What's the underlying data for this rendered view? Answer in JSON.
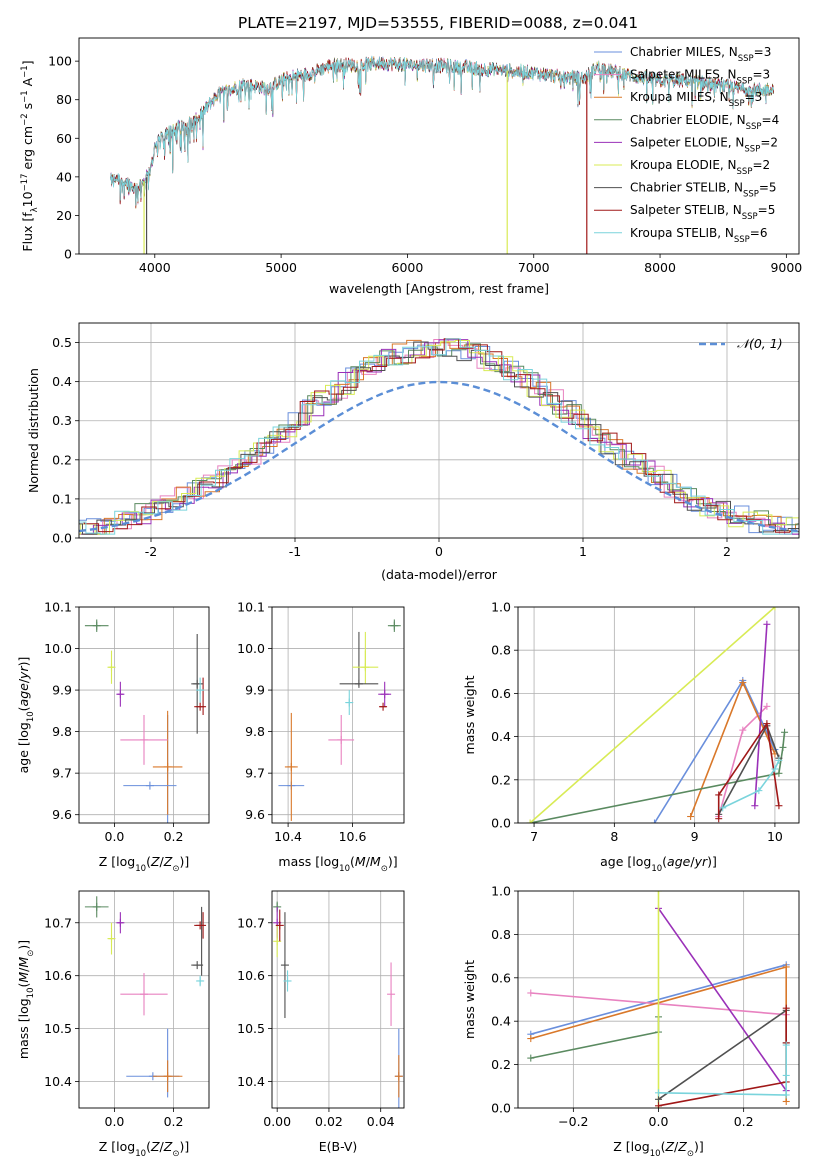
{
  "figure_title": "PLATE=2197, MJD=53555, FIBERID=0088, z=0.041",
  "colors": {
    "chabrier_miles": "#6a8fdc",
    "salpeter_miles": "#e882c0",
    "kroupa_miles": "#d9782a",
    "chabrier_elodie": "#5a8a60",
    "salpeter_elodie": "#9a30b8",
    "kroupa_elodie": "#d8eb55",
    "chabrier_stelib": "#505050",
    "salpeter_stelib": "#a01818",
    "kroupa_stelib": "#7ad4dc",
    "normal": "#5b8ed6",
    "grid": "#b0b0b0"
  },
  "models": [
    {
      "key": "chabrier_miles",
      "label": "Chabrier MILES, N",
      "nssp": "3",
      "color": "#6a8fdc"
    },
    {
      "key": "salpeter_miles",
      "label": "Salpeter MILES, N",
      "nssp": "3",
      "color": "#e882c0"
    },
    {
      "key": "kroupa_miles",
      "label": "Kroupa MILES, N",
      "nssp": "3",
      "color": "#d9782a"
    },
    {
      "key": "chabrier_elodie",
      "label": "Chabrier ELODIE, N",
      "nssp": "4",
      "color": "#5a8a60"
    },
    {
      "key": "salpeter_elodie",
      "label": "Salpeter ELODIE, N",
      "nssp": "2",
      "color": "#9a30b8"
    },
    {
      "key": "kroupa_elodie",
      "label": "Kroupa ELODIE, N",
      "nssp": "2",
      "color": "#d8eb55"
    },
    {
      "key": "chabrier_stelib",
      "label": "Chabrier STELIB, N",
      "nssp": "5",
      "color": "#505050"
    },
    {
      "key": "salpeter_stelib",
      "label": "Salpeter STELIB, N",
      "nssp": "5",
      "color": "#a01818"
    },
    {
      "key": "kroupa_stelib",
      "label": "Kroupa STELIB, N",
      "nssp": "6",
      "color": "#7ad4dc"
    }
  ],
  "chart_data": [
    {
      "id": "spectrum",
      "type": "line",
      "xlabel": "wavelength [Angstrom, rest frame]",
      "ylabel": "Flux [f",
      "xlim": [
        3400,
        9100
      ],
      "ylim": [
        0,
        112
      ],
      "xticks": [
        4000,
        5000,
        6000,
        7000,
        8000,
        9000
      ],
      "yticks": [
        0,
        20,
        40,
        60,
        80,
        100
      ],
      "x_range": [
        3650,
        8900
      ],
      "continuum": [
        [
          3650,
          38
        ],
        [
          3700,
          40
        ],
        [
          3800,
          36
        ],
        [
          3850,
          34
        ],
        [
          3920,
          38
        ],
        [
          3970,
          44
        ],
        [
          4000,
          56
        ],
        [
          4100,
          63
        ],
        [
          4200,
          66
        ],
        [
          4300,
          68
        ],
        [
          4400,
          75
        ],
        [
          4500,
          83
        ],
        [
          4600,
          85
        ],
        [
          4700,
          88
        ],
        [
          4800,
          87
        ],
        [
          4900,
          86
        ],
        [
          5000,
          90
        ],
        [
          5100,
          92
        ],
        [
          5200,
          93
        ],
        [
          5400,
          98
        ],
        [
          5600,
          98
        ],
        [
          5800,
          99
        ],
        [
          6000,
          98
        ],
        [
          6200,
          98
        ],
        [
          6400,
          97
        ],
        [
          6600,
          96
        ],
        [
          6800,
          95
        ],
        [
          7000,
          94
        ],
        [
          7200,
          92
        ],
        [
          7400,
          91
        ],
        [
          7500,
          97
        ],
        [
          7600,
          95
        ],
        [
          7800,
          92
        ],
        [
          8000,
          90
        ],
        [
          8200,
          90
        ],
        [
          8400,
          88
        ],
        [
          8600,
          86
        ],
        [
          8800,
          85
        ],
        [
          8900,
          86
        ]
      ],
      "notes": "model spectra overlap; noisy absorption structure",
      "drops": [
        {
          "model": "kroupa_elodie",
          "x": 3915
        },
        {
          "model": "chabrier_stelib",
          "x": 3935
        },
        {
          "model": "kroupa_elodie",
          "x": 6790
        },
        {
          "model": "salpeter_stelib",
          "x": 7420
        }
      ]
    },
    {
      "id": "residuals",
      "type": "histogram",
      "xlabel": "(data-model)/error",
      "ylabel": "Normed distribution",
      "xlim": [
        -2.5,
        2.5
      ],
      "ylim": [
        0,
        0.55
      ],
      "xticks": [
        -2,
        -1,
        0,
        1,
        2
      ],
      "yticks": [
        0.0,
        0.1,
        0.2,
        0.3,
        0.4,
        0.5
      ],
      "legend": "𝒩(0, 1)",
      "bin_width": 0.1,
      "normal": {
        "mean": 0,
        "sigma": 1
      }
    },
    {
      "id": "age_vs_Z",
      "type": "scatter",
      "xlabel": "Z [log",
      "ylabel": "age  [log",
      "xlim": [
        -0.12,
        0.32
      ],
      "ylim": [
        9.58,
        10.1
      ],
      "xticks": [
        0.0,
        0.2
      ],
      "xticklabels": [
        "0.0",
        "0.2"
      ],
      "yticks": [
        9.6,
        9.7,
        9.8,
        9.9,
        10.0,
        10.1
      ],
      "points": [
        {
          "model": "chabrier_miles",
          "x": 0.12,
          "xerr": 0.09,
          "y": 9.67,
          "yerr": 0.0
        },
        {
          "model": "salpeter_miles",
          "x": 0.1,
          "xerr": 0.08,
          "y": 9.78,
          "yerr": 0.06
        },
        {
          "model": "kroupa_miles",
          "x": 0.18,
          "xerr": 0.05,
          "y": 9.715,
          "yerr": 0.0
        },
        {
          "model": "chabrier_elodie",
          "x": -0.06,
          "xerr": 0.04,
          "y": 10.055,
          "yerr": 0.015
        },
        {
          "model": "salpeter_elodie",
          "x": 0.02,
          "xerr": 0.01,
          "y": 9.89,
          "yerr": 0.03
        },
        {
          "model": "kroupa_elodie",
          "x": -0.01,
          "xerr": 0.01,
          "y": 9.955,
          "yerr": 0.04
        },
        {
          "model": "chabrier_stelib",
          "x": 0.28,
          "xerr": 0.02,
          "y": 9.915,
          "yerr": 0.12
        },
        {
          "model": "salpeter_stelib",
          "x": 0.29,
          "xerr": 0.02,
          "y": 9.86,
          "yerr": 0.0
        },
        {
          "model": "kroupa_stelib",
          "x": 0.29,
          "xerr": 0.01,
          "y": 9.9,
          "yerr": 0.03
        }
      ],
      "vlines": [
        {
          "model": "chabrier_miles",
          "x": 0.18,
          "y0": 9.58,
          "y1": 9.84
        },
        {
          "model": "kroupa_miles",
          "x": 0.18,
          "y0": 9.6,
          "y1": 9.85
        },
        {
          "model": "salpeter_stelib",
          "x": 0.3,
          "y0": 9.84,
          "y1": 9.93
        }
      ]
    },
    {
      "id": "age_vs_mass",
      "type": "scatter",
      "xlabel": "mass [log",
      "ylabel": "",
      "xlim": [
        10.35,
        10.76
      ],
      "ylim": [
        9.58,
        10.1
      ],
      "xticks": [
        10.4,
        10.6
      ],
      "xticklabels": [
        "10.4",
        "10.6"
      ],
      "yticks": [
        9.6,
        9.7,
        9.8,
        9.9,
        10.0,
        10.1
      ],
      "points": [
        {
          "model": "chabrier_miles",
          "x": 10.41,
          "xerr": 0.04,
          "y": 9.67,
          "yerr": 0.0
        },
        {
          "model": "salpeter_miles",
          "x": 10.565,
          "xerr": 0.04,
          "y": 9.78,
          "yerr": 0.06
        },
        {
          "model": "kroupa_miles",
          "x": 10.41,
          "xerr": 0.02,
          "y": 9.715,
          "yerr": 0.13
        },
        {
          "model": "chabrier_elodie",
          "x": 10.73,
          "xerr": 0.02,
          "y": 10.055,
          "yerr": 0.015
        },
        {
          "model": "salpeter_elodie",
          "x": 10.7,
          "xerr": 0.02,
          "y": 9.89,
          "yerr": 0.03
        },
        {
          "model": "kroupa_elodie",
          "x": 10.64,
          "xerr": 0.04,
          "y": 9.955,
          "yerr": 0.04
        },
        {
          "model": "chabrier_stelib",
          "x": 10.62,
          "xerr": 0.06,
          "y": 9.915,
          "yerr": 0.0
        },
        {
          "model": "salpeter_stelib",
          "x": 10.695,
          "xerr": 0.01,
          "y": 9.86,
          "yerr": 0.0
        },
        {
          "model": "kroupa_stelib",
          "x": 10.59,
          "xerr": 0.01,
          "y": 9.87,
          "yerr": 0.03
        }
      ],
      "vlines": [
        {
          "model": "chabrier_stelib",
          "x": 10.62,
          "y0": 9.91,
          "y1": 10.04
        },
        {
          "model": "kroupa_elodie",
          "x": 10.64,
          "y0": 9.95,
          "y1": 10.04
        }
      ]
    },
    {
      "id": "weight_vs_age",
      "type": "line",
      "xlabel": "age  [log",
      "ylabel": "mass weight",
      "xlim": [
        6.8,
        10.3
      ],
      "ylim": [
        0,
        1
      ],
      "xticks": [
        7,
        8,
        9,
        10
      ],
      "yticks": [
        0.0,
        0.2,
        0.4,
        0.6,
        0.8,
        1.0
      ],
      "series": [
        {
          "model": "chabrier_miles",
          "points": [
            [
              8.5,
              0.0
            ],
            [
              9.6,
              0.66
            ],
            [
              10.0,
              0.34
            ]
          ]
        },
        {
          "model": "salpeter_miles",
          "points": [
            [
              9.3,
              0.03
            ],
            [
              9.6,
              0.43
            ],
            [
              9.9,
              0.54
            ]
          ]
        },
        {
          "model": "kroupa_miles",
          "points": [
            [
              8.95,
              0.03
            ],
            [
              9.6,
              0.65
            ],
            [
              10.0,
              0.32
            ]
          ]
        },
        {
          "model": "chabrier_elodie",
          "points": [
            [
              6.95,
              0.0
            ],
            [
              10.05,
              0.23
            ],
            [
              10.1,
              0.35
            ],
            [
              10.12,
              0.42
            ]
          ]
        },
        {
          "model": "salpeter_elodie",
          "points": [
            [
              9.75,
              0.08
            ],
            [
              9.9,
              0.92
            ]
          ]
        },
        {
          "model": "kroupa_elodie",
          "points": [
            [
              6.95,
              0.0
            ],
            [
              10.0,
              1.0
            ]
          ]
        },
        {
          "model": "chabrier_stelib",
          "points": [
            [
              9.3,
              0.04
            ],
            [
              9.9,
              0.45
            ],
            [
              10.05,
              0.3
            ]
          ]
        },
        {
          "model": "salpeter_stelib",
          "points": [
            [
              9.3,
              0.02
            ],
            [
              9.3,
              0.13
            ],
            [
              9.9,
              0.46
            ],
            [
              10.05,
              0.08
            ]
          ]
        },
        {
          "model": "kroupa_stelib",
          "points": [
            [
              9.35,
              0.07
            ],
            [
              9.8,
              0.15
            ],
            [
              10.0,
              0.25
            ],
            [
              10.05,
              0.29
            ]
          ]
        }
      ]
    },
    {
      "id": "mass_vs_Z",
      "type": "scatter",
      "xlabel": "Z [log",
      "ylabel": "mass [log",
      "xlim": [
        -0.12,
        0.32
      ],
      "ylim": [
        10.35,
        10.76
      ],
      "xticks": [
        0.0,
        0.2
      ],
      "xticklabels": [
        "0.0",
        "0.2"
      ],
      "yticks": [
        10.4,
        10.5,
        10.6,
        10.7
      ],
      "points": [
        {
          "model": "chabrier_miles",
          "x": 0.13,
          "xerr": 0.09,
          "y": 10.41,
          "yerr": 0.0
        },
        {
          "model": "salpeter_miles",
          "x": 0.1,
          "xerr": 0.08,
          "y": 10.565,
          "yerr": 0.04
        },
        {
          "model": "kroupa_miles",
          "x": 0.18,
          "xerr": 0.05,
          "y": 10.41,
          "yerr": 0.0
        },
        {
          "model": "chabrier_elodie",
          "x": -0.06,
          "xerr": 0.04,
          "y": 10.73,
          "yerr": 0.02
        },
        {
          "model": "salpeter_elodie",
          "x": 0.02,
          "xerr": 0.01,
          "y": 10.7,
          "yerr": 0.02
        },
        {
          "model": "kroupa_elodie",
          "x": -0.01,
          "xerr": 0.01,
          "y": 10.67,
          "yerr": 0.03
        },
        {
          "model": "chabrier_stelib",
          "x": 0.28,
          "xerr": 0.02,
          "y": 10.62,
          "yerr": 0.0
        },
        {
          "model": "salpeter_stelib",
          "x": 0.29,
          "xerr": 0.02,
          "y": 10.695,
          "yerr": 0.0
        },
        {
          "model": "kroupa_stelib",
          "x": 0.29,
          "xerr": 0.01,
          "y": 10.59,
          "yerr": 0.01
        }
      ],
      "vlines": [
        {
          "model": "chabrier_miles",
          "x": 0.18,
          "y0": 10.37,
          "y1": 10.5
        },
        {
          "model": "kroupa_miles",
          "x": 0.18,
          "y0": 10.38,
          "y1": 10.44
        },
        {
          "model": "chabrier_stelib",
          "x": 0.295,
          "y0": 10.6,
          "y1": 10.73
        },
        {
          "model": "salpeter_stelib",
          "x": 0.3,
          "y0": 10.67,
          "y1": 10.72
        }
      ]
    },
    {
      "id": "mass_vs_ebv",
      "type": "scatter",
      "xlabel": "E(B-V)",
      "ylabel": "",
      "xlim": [
        -0.002,
        0.049
      ],
      "ylim": [
        10.35,
        10.76
      ],
      "xticks": [
        0.0,
        0.02,
        0.04
      ],
      "xticklabels": [
        "0.00",
        "0.02",
        "0.04"
      ],
      "yticks": [
        10.4,
        10.5,
        10.6,
        10.7
      ],
      "points": [
        {
          "model": "chabrier_miles",
          "x": 0.047,
          "xerr": 0.0,
          "y": 10.41,
          "yerr": 0.09
        },
        {
          "model": "salpeter_miles",
          "x": 0.044,
          "xerr": 0.0,
          "y": 10.565,
          "yerr": 0.06
        },
        {
          "model": "kroupa_miles",
          "x": 0.047,
          "xerr": 0.0,
          "y": 10.41,
          "yerr": 0.04
        },
        {
          "model": "chabrier_elodie",
          "x": 0.0,
          "xerr": 0.0,
          "y": 10.73,
          "yerr": 0.01
        },
        {
          "model": "salpeter_elodie",
          "x": 0.0,
          "xerr": 0.0,
          "y": 10.7,
          "yerr": 0.03
        },
        {
          "model": "kroupa_elodie",
          "x": 0.0,
          "xerr": 0.0,
          "y": 10.665,
          "yerr": 0.03
        },
        {
          "model": "chabrier_stelib",
          "x": 0.003,
          "xerr": 0.0,
          "y": 10.62,
          "yerr": 0.1
        },
        {
          "model": "salpeter_stelib",
          "x": 0.001,
          "xerr": 0.0,
          "y": 10.695,
          "yerr": 0.03
        },
        {
          "model": "kroupa_stelib",
          "x": 0.004,
          "xerr": 0.0,
          "y": 10.59,
          "yerr": 0.02
        }
      ],
      "vlines": []
    },
    {
      "id": "weight_vs_Z",
      "type": "line",
      "xlabel": "Z [log",
      "ylabel": "mass weight",
      "xlim": [
        -0.33,
        0.33
      ],
      "ylim": [
        0,
        1
      ],
      "xticks": [
        -0.2,
        0.0,
        0.2
      ],
      "xticklabels": [
        "−0.2",
        "0.0",
        "0.2"
      ],
      "yticks": [
        0.0,
        0.2,
        0.4,
        0.6,
        0.8,
        1.0
      ],
      "series": [
        {
          "model": "chabrier_miles",
          "points": [
            [
              -0.3,
              0.34
            ],
            [
              0.3,
              0.66
            ]
          ]
        },
        {
          "model": "salpeter_miles",
          "points": [
            [
              -0.3,
              0.53
            ],
            [
              0.3,
              0.43
            ]
          ]
        },
        {
          "model": "kroupa_miles",
          "points": [
            [
              -0.3,
              0.32
            ],
            [
              0.3,
              0.65
            ],
            [
              0.3,
              0.03
            ]
          ]
        },
        {
          "model": "chabrier_elodie",
          "points": [
            [
              -0.3,
              0.23
            ],
            [
              0.0,
              0.35
            ],
            [
              0.0,
              0.42
            ]
          ]
        },
        {
          "model": "salpeter_elodie",
          "points": [
            [
              0.0,
              0.92
            ],
            [
              0.3,
              0.08
            ]
          ]
        },
        {
          "model": "kroupa_elodie",
          "points": [
            [
              0.0,
              1.0
            ],
            [
              0.0,
              0.0
            ]
          ]
        },
        {
          "model": "chabrier_stelib",
          "points": [
            [
              0.0,
              0.04
            ],
            [
              0.3,
              0.45
            ],
            [
              0.3,
              0.3
            ]
          ]
        },
        {
          "model": "salpeter_stelib",
          "points": [
            [
              0.0,
              0.01
            ],
            [
              0.3,
              0.12
            ],
            [
              0.3,
              0.46
            ],
            [
              0.3,
              0.3
            ]
          ]
        },
        {
          "model": "kroupa_stelib",
          "points": [
            [
              0.0,
              0.07
            ],
            [
              0.3,
              0.06
            ],
            [
              0.3,
              0.29
            ],
            [
              0.3,
              0.15
            ]
          ]
        }
      ]
    }
  ]
}
